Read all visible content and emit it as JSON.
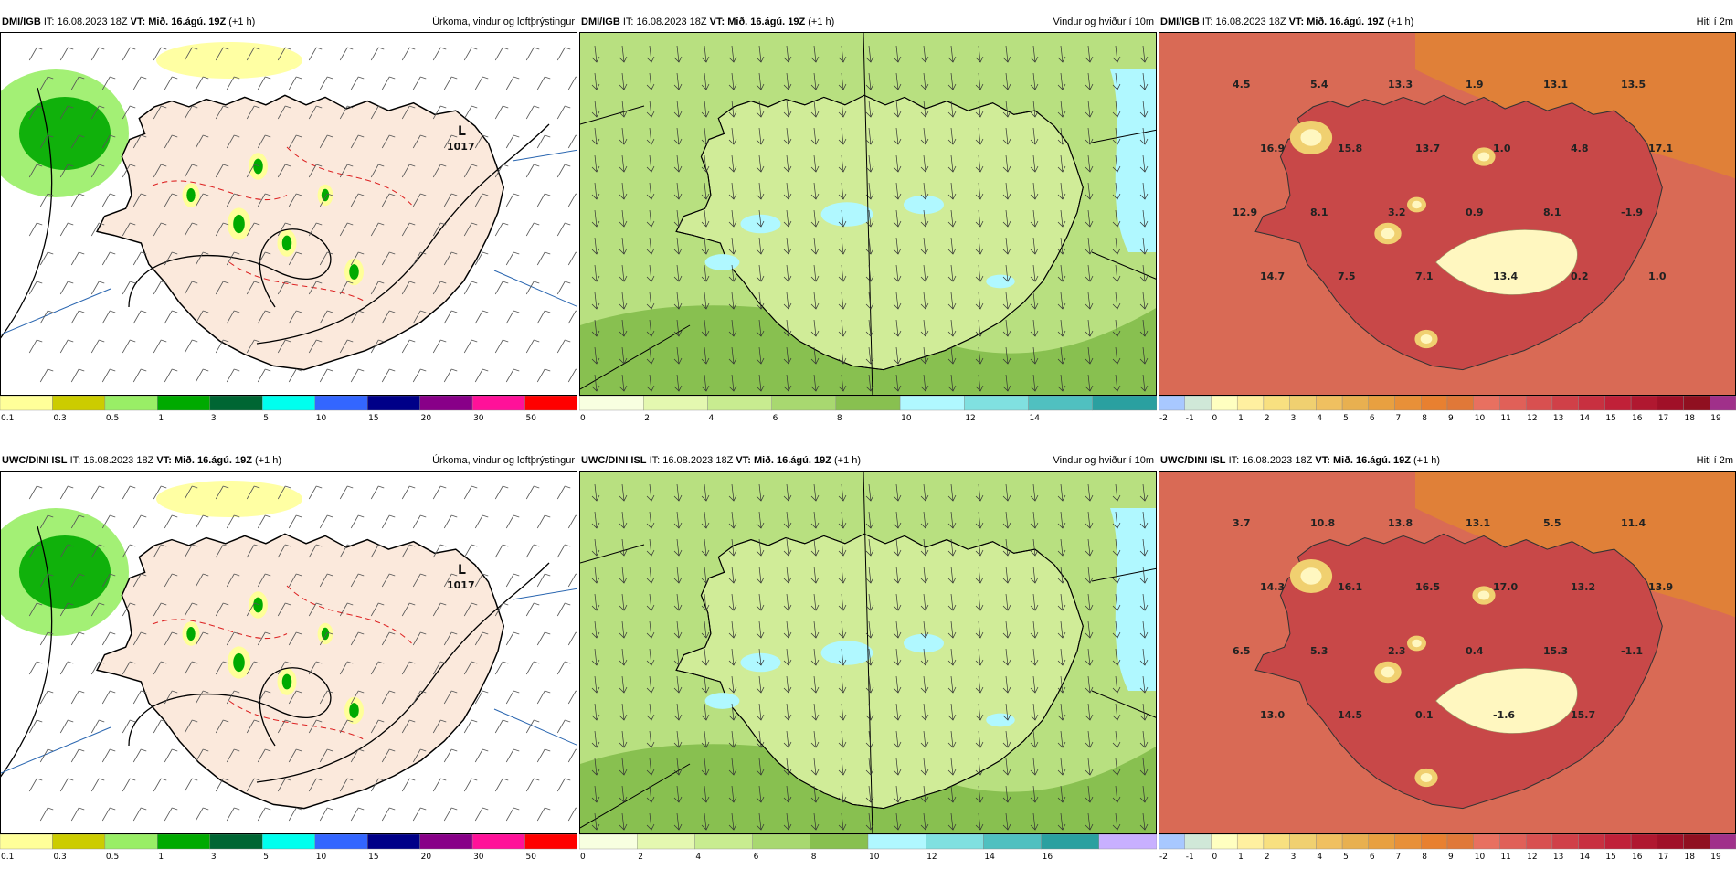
{
  "rows": [
    {
      "model": "DMI/IGB",
      "issue_label": "IT:",
      "issue_time": "16.08.2023 18Z",
      "valid_label": "VT:",
      "valid_time": "Mið. 16.ágú. 19Z",
      "lead": "(+1 h)",
      "precip_low": {
        "letter": "L",
        "value": "1017"
      },
      "temps": [
        "4.5",
        "5.4",
        "13.3",
        "1.9",
        "13.1",
        "13.5",
        "16.9",
        "15.8",
        "13.7",
        "1.0",
        "4.8",
        "17.1",
        "12.9",
        "8.1",
        "3.2",
        "0.9",
        "8.1",
        "-1.9",
        "14.7",
        "7.5",
        "7.1",
        "13.4",
        "0.2",
        "1.0"
      ]
    },
    {
      "model": "UWC/DINI ISL",
      "issue_label": "IT:",
      "issue_time": "16.08.2023 18Z",
      "valid_label": "VT:",
      "valid_time": "Mið. 16.ágú. 19Z",
      "lead": "(+1 h)",
      "precip_low": {
        "letter": "L",
        "value": "1017"
      },
      "temps": [
        "3.7",
        "10.8",
        "13.8",
        "13.1",
        "5.5",
        "11.4",
        "14.3",
        "16.1",
        "16.5",
        "17.0",
        "13.2",
        "13.9",
        "6.5",
        "5.3",
        "2.3",
        "0.4",
        "15.3",
        "-1.1",
        "13.0",
        "14.5",
        "0.1",
        "-1.6",
        "15.7"
      ]
    }
  ],
  "panel_titles": {
    "precip": "Úrkoma, vindur og loftþrýstingur",
    "wind": "Vindur og hviður í 10m",
    "temp": "Hiti í 2m"
  },
  "colorbars": {
    "precip": {
      "labels": [
        "0.1",
        "0.3",
        "0.5",
        "1",
        "3",
        "5",
        "10",
        "15",
        "20",
        "30",
        "50"
      ],
      "colors": [
        "#ffff99",
        "#cccc00",
        "#99ee66",
        "#00aa00",
        "#006633",
        "#00ffee",
        "#3366ff",
        "#000088",
        "#880088",
        "#ff1199",
        "#ff0000"
      ]
    },
    "wind_top": {
      "labels": [
        "0",
        "2",
        "4",
        "6",
        "8",
        "10",
        "12",
        "14"
      ],
      "colors": [
        "#f8ffe0",
        "#e4f8b0",
        "#c8ec90",
        "#a8d870",
        "#88c050",
        "#b0f8ff",
        "#80e0e0",
        "#50c0c0",
        "#2aa0a0"
      ]
    },
    "wind_bottom": {
      "labels": [
        "0",
        "2",
        "4",
        "6",
        "8",
        "10",
        "12",
        "14",
        "16"
      ],
      "colors": [
        "#f8ffe0",
        "#e4f8b0",
        "#c8ec90",
        "#a8d870",
        "#88c050",
        "#b0f8ff",
        "#80e0e0",
        "#50c0c0",
        "#2aa0a0",
        "#c8b0ff"
      ]
    },
    "temp": {
      "labels": [
        "-2",
        "-1",
        "0",
        "1",
        "2",
        "3",
        "4",
        "5",
        "6",
        "7",
        "8",
        "9",
        "10",
        "11",
        "12",
        "13",
        "14",
        "15",
        "16",
        "17",
        "18",
        "19"
      ],
      "colors": [
        "#a8c8ff",
        "#d0e8d8",
        "#ffffc0",
        "#fff0a0",
        "#f8e080",
        "#f0d070",
        "#f0c060",
        "#e8b050",
        "#e8a040",
        "#e89038",
        "#e88030",
        "#e07838",
        "#e87060",
        "#e06058",
        "#d85050",
        "#d04048",
        "#c83040",
        "#c02038",
        "#b01830",
        "#a01028",
        "#901020",
        "#a0308a"
      ]
    }
  },
  "colors": {
    "land_precip": "#fbe9dc",
    "sea_precip": "#ffffff",
    "wind_base": "#b8e080",
    "temp_sea": "#d96a55",
    "temp_land": "#c84848",
    "coast": "#000000"
  }
}
